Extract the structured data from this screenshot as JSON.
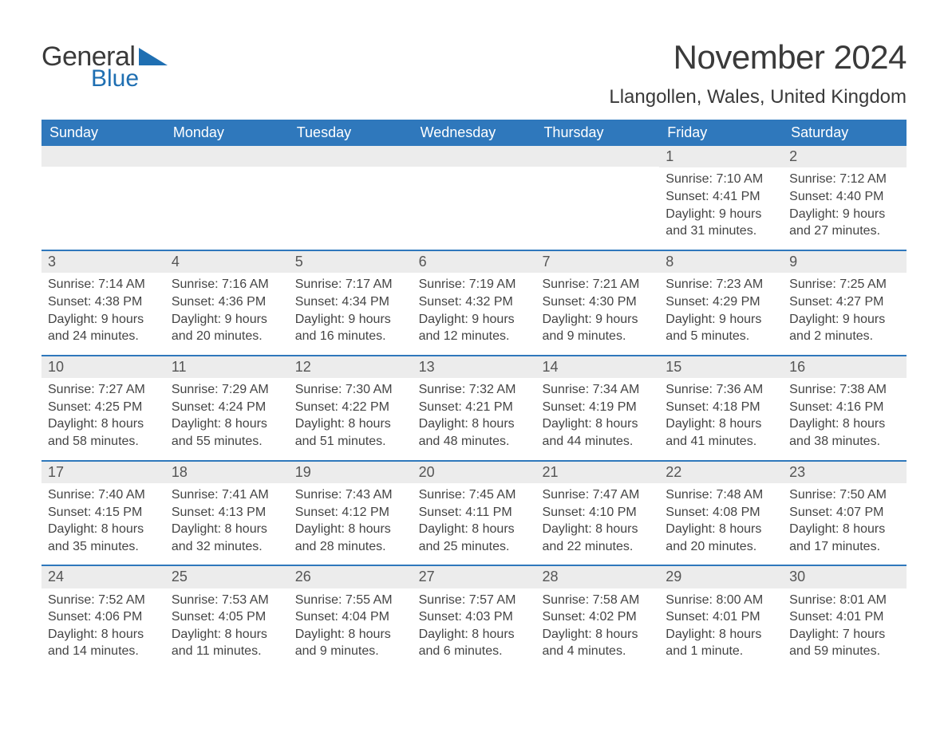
{
  "logo": {
    "general": "General",
    "blue": "Blue",
    "tri_color": "#1f6fb2"
  },
  "title": "November 2024",
  "location": "Llangollen, Wales, United Kingdom",
  "colors": {
    "header_bg": "#2f78bc",
    "header_text": "#ffffff",
    "row_divider": "#2f78bc",
    "daynum_bg": "#ececec",
    "daynum_text": "#555555",
    "body_text": "#444444",
    "page_bg": "#ffffff"
  },
  "fonts": {
    "month_title_size": 42,
    "location_size": 24,
    "dayhead_size": 18,
    "daynum_size": 18,
    "body_size": 16
  },
  "day_headers": [
    "Sunday",
    "Monday",
    "Tuesday",
    "Wednesday",
    "Thursday",
    "Friday",
    "Saturday"
  ],
  "weeks": [
    [
      {
        "n": "",
        "sunrise": "",
        "sunset": "",
        "daylight1": "",
        "daylight2": ""
      },
      {
        "n": "",
        "sunrise": "",
        "sunset": "",
        "daylight1": "",
        "daylight2": ""
      },
      {
        "n": "",
        "sunrise": "",
        "sunset": "",
        "daylight1": "",
        "daylight2": ""
      },
      {
        "n": "",
        "sunrise": "",
        "sunset": "",
        "daylight1": "",
        "daylight2": ""
      },
      {
        "n": "",
        "sunrise": "",
        "sunset": "",
        "daylight1": "",
        "daylight2": ""
      },
      {
        "n": "1",
        "sunrise": "Sunrise: 7:10 AM",
        "sunset": "Sunset: 4:41 PM",
        "daylight1": "Daylight: 9 hours",
        "daylight2": "and 31 minutes."
      },
      {
        "n": "2",
        "sunrise": "Sunrise: 7:12 AM",
        "sunset": "Sunset: 4:40 PM",
        "daylight1": "Daylight: 9 hours",
        "daylight2": "and 27 minutes."
      }
    ],
    [
      {
        "n": "3",
        "sunrise": "Sunrise: 7:14 AM",
        "sunset": "Sunset: 4:38 PM",
        "daylight1": "Daylight: 9 hours",
        "daylight2": "and 24 minutes."
      },
      {
        "n": "4",
        "sunrise": "Sunrise: 7:16 AM",
        "sunset": "Sunset: 4:36 PM",
        "daylight1": "Daylight: 9 hours",
        "daylight2": "and 20 minutes."
      },
      {
        "n": "5",
        "sunrise": "Sunrise: 7:17 AM",
        "sunset": "Sunset: 4:34 PM",
        "daylight1": "Daylight: 9 hours",
        "daylight2": "and 16 minutes."
      },
      {
        "n": "6",
        "sunrise": "Sunrise: 7:19 AM",
        "sunset": "Sunset: 4:32 PM",
        "daylight1": "Daylight: 9 hours",
        "daylight2": "and 12 minutes."
      },
      {
        "n": "7",
        "sunrise": "Sunrise: 7:21 AM",
        "sunset": "Sunset: 4:30 PM",
        "daylight1": "Daylight: 9 hours",
        "daylight2": "and 9 minutes."
      },
      {
        "n": "8",
        "sunrise": "Sunrise: 7:23 AM",
        "sunset": "Sunset: 4:29 PM",
        "daylight1": "Daylight: 9 hours",
        "daylight2": "and 5 minutes."
      },
      {
        "n": "9",
        "sunrise": "Sunrise: 7:25 AM",
        "sunset": "Sunset: 4:27 PM",
        "daylight1": "Daylight: 9 hours",
        "daylight2": "and 2 minutes."
      }
    ],
    [
      {
        "n": "10",
        "sunrise": "Sunrise: 7:27 AM",
        "sunset": "Sunset: 4:25 PM",
        "daylight1": "Daylight: 8 hours",
        "daylight2": "and 58 minutes."
      },
      {
        "n": "11",
        "sunrise": "Sunrise: 7:29 AM",
        "sunset": "Sunset: 4:24 PM",
        "daylight1": "Daylight: 8 hours",
        "daylight2": "and 55 minutes."
      },
      {
        "n": "12",
        "sunrise": "Sunrise: 7:30 AM",
        "sunset": "Sunset: 4:22 PM",
        "daylight1": "Daylight: 8 hours",
        "daylight2": "and 51 minutes."
      },
      {
        "n": "13",
        "sunrise": "Sunrise: 7:32 AM",
        "sunset": "Sunset: 4:21 PM",
        "daylight1": "Daylight: 8 hours",
        "daylight2": "and 48 minutes."
      },
      {
        "n": "14",
        "sunrise": "Sunrise: 7:34 AM",
        "sunset": "Sunset: 4:19 PM",
        "daylight1": "Daylight: 8 hours",
        "daylight2": "and 44 minutes."
      },
      {
        "n": "15",
        "sunrise": "Sunrise: 7:36 AM",
        "sunset": "Sunset: 4:18 PM",
        "daylight1": "Daylight: 8 hours",
        "daylight2": "and 41 minutes."
      },
      {
        "n": "16",
        "sunrise": "Sunrise: 7:38 AM",
        "sunset": "Sunset: 4:16 PM",
        "daylight1": "Daylight: 8 hours",
        "daylight2": "and 38 minutes."
      }
    ],
    [
      {
        "n": "17",
        "sunrise": "Sunrise: 7:40 AM",
        "sunset": "Sunset: 4:15 PM",
        "daylight1": "Daylight: 8 hours",
        "daylight2": "and 35 minutes."
      },
      {
        "n": "18",
        "sunrise": "Sunrise: 7:41 AM",
        "sunset": "Sunset: 4:13 PM",
        "daylight1": "Daylight: 8 hours",
        "daylight2": "and 32 minutes."
      },
      {
        "n": "19",
        "sunrise": "Sunrise: 7:43 AM",
        "sunset": "Sunset: 4:12 PM",
        "daylight1": "Daylight: 8 hours",
        "daylight2": "and 28 minutes."
      },
      {
        "n": "20",
        "sunrise": "Sunrise: 7:45 AM",
        "sunset": "Sunset: 4:11 PM",
        "daylight1": "Daylight: 8 hours",
        "daylight2": "and 25 minutes."
      },
      {
        "n": "21",
        "sunrise": "Sunrise: 7:47 AM",
        "sunset": "Sunset: 4:10 PM",
        "daylight1": "Daylight: 8 hours",
        "daylight2": "and 22 minutes."
      },
      {
        "n": "22",
        "sunrise": "Sunrise: 7:48 AM",
        "sunset": "Sunset: 4:08 PM",
        "daylight1": "Daylight: 8 hours",
        "daylight2": "and 20 minutes."
      },
      {
        "n": "23",
        "sunrise": "Sunrise: 7:50 AM",
        "sunset": "Sunset: 4:07 PM",
        "daylight1": "Daylight: 8 hours",
        "daylight2": "and 17 minutes."
      }
    ],
    [
      {
        "n": "24",
        "sunrise": "Sunrise: 7:52 AM",
        "sunset": "Sunset: 4:06 PM",
        "daylight1": "Daylight: 8 hours",
        "daylight2": "and 14 minutes."
      },
      {
        "n": "25",
        "sunrise": "Sunrise: 7:53 AM",
        "sunset": "Sunset: 4:05 PM",
        "daylight1": "Daylight: 8 hours",
        "daylight2": "and 11 minutes."
      },
      {
        "n": "26",
        "sunrise": "Sunrise: 7:55 AM",
        "sunset": "Sunset: 4:04 PM",
        "daylight1": "Daylight: 8 hours",
        "daylight2": "and 9 minutes."
      },
      {
        "n": "27",
        "sunrise": "Sunrise: 7:57 AM",
        "sunset": "Sunset: 4:03 PM",
        "daylight1": "Daylight: 8 hours",
        "daylight2": "and 6 minutes."
      },
      {
        "n": "28",
        "sunrise": "Sunrise: 7:58 AM",
        "sunset": "Sunset: 4:02 PM",
        "daylight1": "Daylight: 8 hours",
        "daylight2": "and 4 minutes."
      },
      {
        "n": "29",
        "sunrise": "Sunrise: 8:00 AM",
        "sunset": "Sunset: 4:01 PM",
        "daylight1": "Daylight: 8 hours",
        "daylight2": "and 1 minute."
      },
      {
        "n": "30",
        "sunrise": "Sunrise: 8:01 AM",
        "sunset": "Sunset: 4:01 PM",
        "daylight1": "Daylight: 7 hours",
        "daylight2": "and 59 minutes."
      }
    ]
  ]
}
